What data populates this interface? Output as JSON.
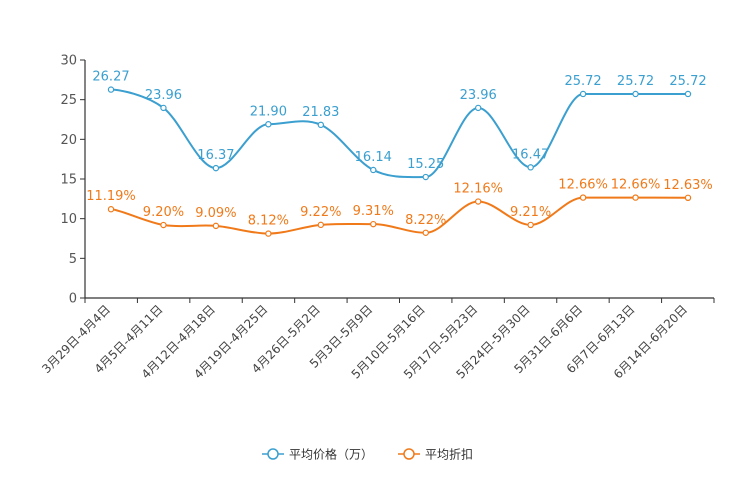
{
  "chart_data": {
    "type": "line",
    "categories": [
      "3月29日-4月4日",
      "4月5日-4月11日",
      "4月12日-4月18日",
      "4月19日-4月25日",
      "4月26日-5月2日",
      "5月3日-5月9日",
      "5月10日-5月16日",
      "5月17日-5月23日",
      "5月24日-5月30日",
      "5月31日-6月6日",
      "6月7日-6月13日",
      "6月14日-6月20日"
    ],
    "yticks": [
      "0",
      "5",
      "10",
      "15",
      "20",
      "25",
      "30"
    ],
    "ylim": [
      0,
      30
    ],
    "series": [
      {
        "name": "平均价格（万）",
        "color": "#3b9fcf",
        "values": [
          26.27,
          23.96,
          16.37,
          21.9,
          21.83,
          16.14,
          15.25,
          23.96,
          16.47,
          25.72,
          25.72,
          25.72
        ],
        "labels": [
          "26.27",
          "23.96",
          "16.37",
          "21.90",
          "21.83",
          "16.14",
          "15.25",
          "23.96",
          "16.47",
          "25.72",
          "25.72",
          "25.72"
        ]
      },
      {
        "name": "平均折扣",
        "color": "#f07a1a",
        "values": [
          11.19,
          9.2,
          9.09,
          8.12,
          9.22,
          9.31,
          8.22,
          12.16,
          9.21,
          12.66,
          12.66,
          12.63
        ],
        "labels": [
          "11.19%",
          "9.20%",
          "9.09%",
          "8.12%",
          "9.22%",
          "9.31%",
          "8.22%",
          "12.16%",
          "9.21%",
          "12.66%",
          "12.66%",
          "12.63%"
        ]
      }
    ],
    "legend_position": "bottom-center",
    "grid": false
  }
}
